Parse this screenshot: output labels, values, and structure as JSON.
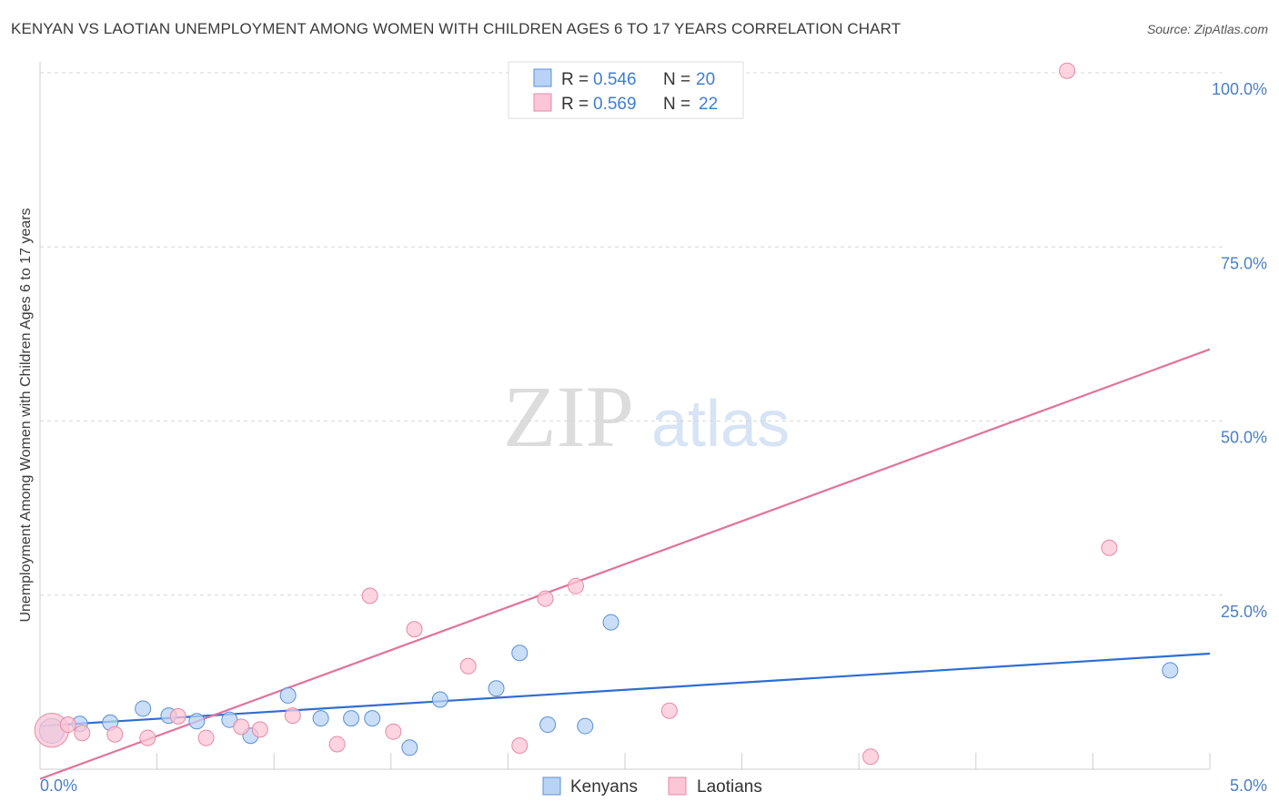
{
  "title": "KENYAN VS LAOTIAN UNEMPLOYMENT AMONG WOMEN WITH CHILDREN AGES 6 TO 17 YEARS CORRELATION CHART",
  "source": "Source: ZipAtlas.com",
  "watermark": {
    "zip": "ZIP",
    "atlas": "atlas"
  },
  "colors": {
    "kenyan_fill": "#b8d3f5",
    "kenyan_stroke": "#5b8fd6",
    "kenyan_line": "#2f6ed0",
    "laotian_fill": "#fcc6d6",
    "laotian_stroke": "#e68aa6",
    "laotian_line": "#e3729b",
    "tick_color": "#4a7fc9",
    "grid": "#d7d7d7"
  },
  "legend": {
    "rows": [
      {
        "r_label": "R =",
        "r_value": "0.546",
        "n_label": "N =",
        "n_value": "20"
      },
      {
        "r_label": "R =",
        "r_value": "0.569",
        "n_label": "N =",
        "n_value": "22"
      }
    ]
  },
  "bottom_legend": {
    "kenyans": "Kenyans",
    "laotians": "Laotians"
  },
  "chart_data": {
    "type": "scatter",
    "title": "KENYAN VS LAOTIAN UNEMPLOYMENT AMONG WOMEN WITH CHILDREN AGES 6 TO 17 YEARS CORRELATION CHART",
    "xlabel": "",
    "ylabel": "Unemployment Among Women with Children Ages 6 to 17 years",
    "xlim": [
      0,
      5
    ],
    "ylim": [
      0,
      100
    ],
    "x_tick_labels": [
      "0.0%",
      "5.0%"
    ],
    "y_tick_labels": [
      "25.0%",
      "50.0%",
      "75.0%",
      "100.0%"
    ],
    "y_ticks": [
      25,
      50,
      75,
      100
    ],
    "grid": true,
    "legend_position": "top-center",
    "series": [
      {
        "name": "Kenyans",
        "r": 0.546,
        "n": 20,
        "points": [
          {
            "x": 0.05,
            "y": 5.5,
            "s": 1.6
          },
          {
            "x": 0.17,
            "y": 6.5
          },
          {
            "x": 0.3,
            "y": 6.7
          },
          {
            "x": 0.44,
            "y": 8.7
          },
          {
            "x": 0.55,
            "y": 7.7
          },
          {
            "x": 0.67,
            "y": 6.9
          },
          {
            "x": 0.81,
            "y": 7.1
          },
          {
            "x": 0.9,
            "y": 4.8
          },
          {
            "x": 1.06,
            "y": 10.6
          },
          {
            "x": 1.2,
            "y": 7.3
          },
          {
            "x": 1.33,
            "y": 7.3
          },
          {
            "x": 1.42,
            "y": 7.3
          },
          {
            "x": 1.58,
            "y": 3.1
          },
          {
            "x": 1.71,
            "y": 10.0
          },
          {
            "x": 1.95,
            "y": 11.6
          },
          {
            "x": 2.05,
            "y": 16.7
          },
          {
            "x": 2.17,
            "y": 6.4
          },
          {
            "x": 2.33,
            "y": 6.2
          },
          {
            "x": 2.44,
            "y": 21.1
          },
          {
            "x": 4.83,
            "y": 14.2
          }
        ],
        "trend": {
          "x": [
            0,
            5
          ],
          "y": [
            6.2,
            16.6
          ]
        }
      },
      {
        "name": "Laotians",
        "r": 0.569,
        "n": 22,
        "points": [
          {
            "x": 0.05,
            "y": 5.6,
            "s": 2.2
          },
          {
            "x": 0.18,
            "y": 5.2
          },
          {
            "x": 0.32,
            "y": 5.0
          },
          {
            "x": 0.46,
            "y": 4.5
          },
          {
            "x": 0.59,
            "y": 7.6
          },
          {
            "x": 0.71,
            "y": 4.5
          },
          {
            "x": 0.86,
            "y": 6.1
          },
          {
            "x": 0.94,
            "y": 5.7
          },
          {
            "x": 1.08,
            "y": 7.7
          },
          {
            "x": 1.27,
            "y": 3.6
          },
          {
            "x": 1.41,
            "y": 24.9
          },
          {
            "x": 1.51,
            "y": 5.4
          },
          {
            "x": 1.6,
            "y": 20.1
          },
          {
            "x": 1.83,
            "y": 14.8
          },
          {
            "x": 2.05,
            "y": 3.4
          },
          {
            "x": 2.16,
            "y": 24.5
          },
          {
            "x": 2.29,
            "y": 26.3
          },
          {
            "x": 2.69,
            "y": 8.4
          },
          {
            "x": 3.55,
            "y": 1.8
          },
          {
            "x": 4.39,
            "y": 100.3
          },
          {
            "x": 4.57,
            "y": 31.8
          },
          {
            "x": 0.12,
            "y": 6.4
          }
        ],
        "trend": {
          "x": [
            0,
            5
          ],
          "y": [
            -1.4,
            60.3
          ]
        }
      }
    ]
  }
}
